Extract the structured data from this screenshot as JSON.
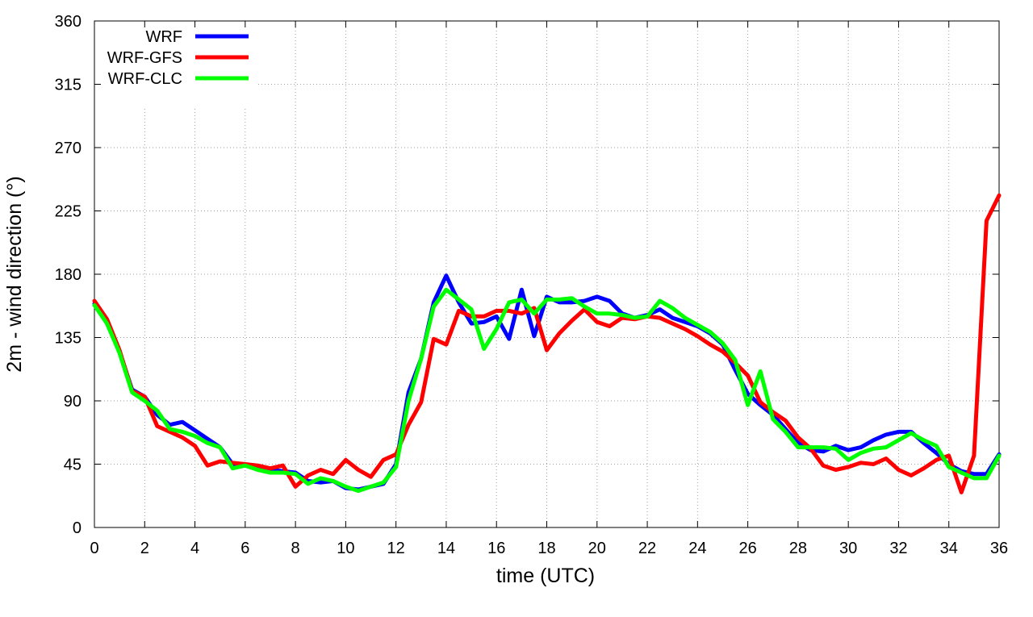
{
  "chart_data": {
    "type": "line",
    "xlabel": "time (UTC)",
    "ylabel": "2m - wind direction (°)",
    "xlim": [
      0,
      36
    ],
    "ylim": [
      0,
      360
    ],
    "xticks": [
      0,
      2,
      4,
      6,
      8,
      10,
      12,
      14,
      16,
      18,
      20,
      22,
      24,
      26,
      28,
      30,
      32,
      34,
      36
    ],
    "yticks": [
      0,
      45,
      90,
      135,
      180,
      225,
      270,
      315,
      360
    ],
    "grid": true,
    "legend_position": "top-left",
    "series": [
      {
        "name": "WRF",
        "color": "#0000ff",
        "x": [
          0,
          0.5,
          1,
          1.5,
          2,
          2.5,
          3,
          3.5,
          4,
          4.5,
          5,
          5.5,
          6,
          6.5,
          7,
          7.5,
          8,
          8.5,
          9,
          9.5,
          10,
          10.5,
          11,
          11.5,
          12,
          12.5,
          13,
          13.5,
          14,
          14.5,
          15,
          15.5,
          16,
          16.5,
          17,
          17.5,
          18,
          18.5,
          19,
          19.5,
          20,
          20.5,
          21,
          21.5,
          22,
          22.5,
          23,
          23.5,
          24,
          24.5,
          25,
          25.5,
          26,
          26.5,
          27,
          27.5,
          28,
          28.5,
          29,
          29.5,
          30,
          30.5,
          31,
          31.5,
          32,
          32.5,
          33,
          33.5,
          34,
          34.5,
          35,
          35.5,
          36
        ],
        "values": [
          159,
          145,
          125,
          98,
          93,
          80,
          73,
          75,
          69,
          63,
          57,
          45,
          44,
          43,
          41,
          40,
          39,
          33,
          32,
          33,
          28,
          27,
          29,
          31,
          45,
          96,
          120,
          160,
          179,
          160,
          145,
          146,
          150,
          134,
          169,
          136,
          164,
          160,
          160,
          161,
          164,
          161,
          152,
          149,
          151,
          155,
          149,
          146,
          143,
          138,
          130,
          112,
          95,
          87,
          80,
          70,
          60,
          55,
          54,
          58,
          55,
          57,
          62,
          66,
          68,
          68,
          60,
          53,
          45,
          40,
          38,
          38,
          52
        ]
      },
      {
        "name": "WRF-GFS",
        "color": "#ff0000",
        "x": [
          0,
          0.5,
          1,
          1.5,
          2,
          2.5,
          3,
          3.5,
          4,
          4.5,
          5,
          5.5,
          6,
          6.5,
          7,
          7.5,
          8,
          8.5,
          9,
          9.5,
          10,
          10.5,
          11,
          11.5,
          12,
          12.5,
          13,
          13.5,
          14,
          14.5,
          15,
          15.5,
          16,
          16.5,
          17,
          17.5,
          18,
          18.5,
          19,
          19.5,
          20,
          20.5,
          21,
          21.5,
          22,
          22.5,
          23,
          23.5,
          24,
          24.5,
          25,
          25.5,
          26,
          26.5,
          27,
          27.5,
          28,
          28.5,
          29,
          29.5,
          30,
          30.5,
          31,
          31.5,
          32,
          32.5,
          33,
          33.5,
          34,
          34.5,
          35,
          35.5,
          36
        ],
        "values": [
          161,
          148,
          126,
          97,
          93,
          72,
          68,
          64,
          58,
          44,
          47,
          46,
          45,
          44,
          42,
          44,
          29,
          37,
          41,
          38,
          48,
          41,
          36,
          48,
          52,
          73,
          89,
          134,
          130,
          154,
          150,
          150,
          154,
          154,
          152,
          156,
          126,
          138,
          147,
          155,
          146,
          143,
          149,
          148,
          150,
          149,
          145,
          141,
          136,
          130,
          125,
          117,
          108,
          89,
          82,
          76,
          64,
          56,
          44,
          41,
          43,
          46,
          45,
          49,
          41,
          37,
          42,
          48,
          51,
          25,
          51,
          218,
          236
        ]
      },
      {
        "name": "WRF-CLC",
        "color": "#00ff00",
        "x": [
          0,
          0.5,
          1,
          1.5,
          2,
          2.5,
          3,
          3.5,
          4,
          4.5,
          5,
          5.5,
          6,
          6.5,
          7,
          7.5,
          8,
          8.5,
          9,
          9.5,
          10,
          10.5,
          11,
          11.5,
          12,
          12.5,
          13,
          13.5,
          14,
          14.5,
          15,
          15.5,
          16,
          16.5,
          17,
          17.5,
          18,
          18.5,
          19,
          19.5,
          20,
          20.5,
          21,
          21.5,
          22,
          22.5,
          23,
          23.5,
          24,
          24.5,
          25,
          25.5,
          26,
          26.5,
          27,
          27.5,
          28,
          28.5,
          29,
          29.5,
          30,
          30.5,
          31,
          31.5,
          32,
          32.5,
          33,
          33.5,
          34,
          34.5,
          35,
          35.5,
          36
        ],
        "values": [
          158,
          145,
          124,
          96,
          90,
          83,
          70,
          68,
          65,
          60,
          57,
          42,
          44,
          41,
          39,
          39,
          38,
          31,
          35,
          33,
          29,
          26,
          29,
          32,
          43,
          90,
          120,
          157,
          169,
          162,
          155,
          127,
          141,
          160,
          162,
          152,
          162,
          162,
          163,
          157,
          152,
          152,
          151,
          149,
          150,
          161,
          156,
          149,
          144,
          139,
          131,
          119,
          87,
          111,
          77,
          68,
          57,
          57,
          57,
          56,
          48,
          53,
          56,
          57,
          62,
          67,
          62,
          58,
          43,
          39,
          35,
          35,
          51
        ]
      }
    ]
  }
}
